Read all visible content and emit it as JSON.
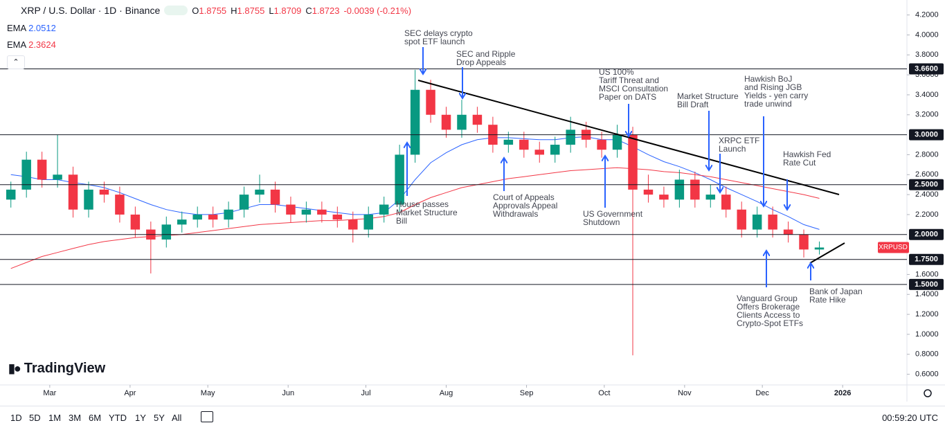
{
  "header": {
    "symbol": "XRP / U.S. Dollar · 1D · Binance",
    "ohlc": [
      {
        "label": "O",
        "value": "1.8755"
      },
      {
        "label": "H",
        "value": "1.8755"
      },
      {
        "label": "L",
        "value": "1.8709"
      },
      {
        "label": "C",
        "value": "1.8723"
      }
    ],
    "change": "-0.0039 (-0.21%)"
  },
  "chart_data": {
    "type": "candlestick",
    "x": [
      45,
      51,
      57,
      63,
      69,
      75,
      81,
      87,
      93,
      99,
      105,
      111,
      117,
      123,
      129,
      135,
      141,
      147,
      153,
      159,
      165,
      171,
      177,
      183,
      189,
      195,
      201,
      207,
      213,
      219,
      225,
      231,
      237,
      243,
      249,
      255,
      261,
      267,
      273,
      279,
      285,
      291,
      297,
      303,
      309,
      315,
      321,
      327,
      333,
      339,
      345,
      351,
      357
    ],
    "open": [
      2.35,
      2.45,
      2.75,
      2.55,
      2.6,
      2.25,
      2.45,
      2.4,
      2.2,
      2.05,
      1.95,
      2.1,
      2.15,
      2.2,
      2.15,
      2.25,
      2.4,
      2.45,
      2.3,
      2.2,
      2.25,
      2.2,
      2.15,
      2.05,
      2.2,
      2.3,
      2.8,
      3.45,
      3.2,
      3.05,
      3.2,
      3.1,
      2.9,
      2.95,
      2.85,
      2.8,
      2.9,
      3.05,
      2.95,
      2.85,
      3.0,
      2.45,
      2.4,
      2.35,
      2.55,
      2.35,
      2.4,
      2.25,
      2.05,
      2.2,
      2.05,
      2.0,
      1.85
    ],
    "high": [
      2.53,
      2.83,
      2.83,
      3.0,
      2.68,
      2.53,
      2.53,
      2.48,
      2.28,
      2.13,
      2.18,
      2.23,
      2.28,
      2.28,
      2.33,
      2.48,
      2.6,
      2.53,
      2.38,
      2.33,
      2.33,
      2.28,
      2.23,
      2.28,
      2.38,
      2.9,
      3.65,
      3.55,
      3.28,
      3.35,
      3.28,
      3.18,
      3.03,
      3.03,
      2.93,
      2.98,
      3.18,
      3.13,
      3.03,
      3.1,
      3.08,
      2.6,
      2.48,
      2.65,
      2.63,
      2.5,
      2.48,
      2.33,
      2.28,
      2.28,
      2.13,
      2.05,
      1.93
    ],
    "low": [
      2.27,
      2.37,
      2.47,
      2.47,
      2.17,
      2.17,
      2.32,
      2.12,
      1.97,
      1.61,
      1.87,
      2.02,
      2.07,
      2.07,
      2.07,
      2.17,
      2.32,
      2.22,
      2.12,
      2.12,
      2.12,
      2.07,
      1.92,
      1.97,
      2.12,
      2.22,
      2.72,
      3.12,
      2.97,
      2.97,
      3.02,
      2.82,
      2.82,
      2.77,
      2.72,
      2.72,
      2.82,
      2.87,
      2.77,
      2.77,
      0.79,
      2.32,
      2.27,
      2.27,
      2.27,
      2.27,
      2.17,
      1.97,
      1.97,
      1.97,
      1.92,
      1.77,
      1.8
    ],
    "close": [
      2.45,
      2.75,
      2.55,
      2.6,
      2.25,
      2.45,
      2.4,
      2.2,
      2.05,
      1.95,
      2.1,
      2.15,
      2.2,
      2.15,
      2.25,
      2.4,
      2.45,
      2.3,
      2.2,
      2.25,
      2.2,
      2.15,
      2.05,
      2.2,
      2.3,
      2.8,
      3.45,
      3.2,
      3.05,
      3.2,
      3.1,
      2.9,
      2.95,
      2.85,
      2.8,
      2.9,
      3.05,
      2.95,
      2.85,
      3.0,
      2.45,
      2.4,
      2.35,
      2.55,
      2.35,
      2.4,
      2.25,
      2.05,
      2.2,
      2.05,
      2.0,
      1.85,
      1.87
    ],
    "up_color": "#089981",
    "down_color": "#f23645",
    "series": [
      {
        "name": "EMA",
        "color": "#2962ff",
        "values": [
          2.6,
          2.58,
          2.55,
          2.55,
          2.52,
          2.5,
          2.47,
          2.42,
          2.36,
          2.3,
          2.25,
          2.22,
          2.2,
          2.2,
          2.22,
          2.26,
          2.3,
          2.3,
          2.28,
          2.26,
          2.24,
          2.22,
          2.2,
          2.2,
          2.22,
          2.35,
          2.55,
          2.72,
          2.82,
          2.9,
          2.95,
          2.97,
          2.97,
          2.96,
          2.95,
          2.95,
          2.97,
          2.98,
          2.95,
          2.95,
          2.88,
          2.8,
          2.73,
          2.68,
          2.62,
          2.55,
          2.47,
          2.4,
          2.33,
          2.25,
          2.18,
          2.1,
          2.0512
        ]
      },
      {
        "name": "EMA",
        "color": "#f23645",
        "values": [
          1.66,
          1.72,
          1.78,
          1.82,
          1.86,
          1.9,
          1.93,
          1.95,
          1.97,
          1.98,
          1.99,
          2.0,
          2.02,
          2.04,
          2.06,
          2.08,
          2.1,
          2.11,
          2.12,
          2.13,
          2.14,
          2.14,
          2.15,
          2.16,
          2.18,
          2.22,
          2.3,
          2.37,
          2.42,
          2.47,
          2.5,
          2.53,
          2.56,
          2.58,
          2.6,
          2.62,
          2.64,
          2.65,
          2.66,
          2.67,
          2.66,
          2.65,
          2.63,
          2.62,
          2.6,
          2.58,
          2.55,
          2.52,
          2.49,
          2.46,
          2.43,
          2.4,
          2.3624
        ]
      }
    ],
    "xlim": [
      40.8,
      390.8
    ],
    "xticks": [
      {
        "value": 60,
        "label": "Mar"
      },
      {
        "value": 91,
        "label": "Apr"
      },
      {
        "value": 121,
        "label": "May"
      },
      {
        "value": 152,
        "label": "Jun"
      },
      {
        "value": 182,
        "label": "Jul"
      },
      {
        "value": 213,
        "label": "Aug"
      },
      {
        "value": 244,
        "label": "Sep"
      },
      {
        "value": 274,
        "label": "Oct"
      },
      {
        "value": 305,
        "label": "Nov"
      },
      {
        "value": 335,
        "label": "Dec"
      },
      {
        "value": 366,
        "label": "2026"
      }
    ],
    "ylim": [
      0.5,
      4.35
    ],
    "yticks": [
      {
        "value": 4.2,
        "label": "4.2000"
      },
      {
        "value": 4.0,
        "label": "4.0000"
      },
      {
        "value": 3.8,
        "label": "3.8000"
      },
      {
        "value": 3.6,
        "label": "3.6000"
      },
      {
        "value": 3.4,
        "label": "3.4000"
      },
      {
        "value": 3.2,
        "label": "3.2000"
      },
      {
        "value": 2.8,
        "label": "2.8000"
      },
      {
        "value": 2.6,
        "label": "2.6000"
      },
      {
        "value": 2.4,
        "label": "2.4000"
      },
      {
        "value": 2.2,
        "label": "2.2000"
      },
      {
        "value": 1.6,
        "label": "1.6000"
      },
      {
        "value": 1.4,
        "label": "1.4000"
      },
      {
        "value": 1.2,
        "label": "1.2000"
      },
      {
        "value": 1.0,
        "label": "1.0000"
      },
      {
        "value": 0.8,
        "label": "0.8000"
      },
      {
        "value": 0.6,
        "label": "0.6000"
      }
    ],
    "levels": [
      {
        "value": 3.66,
        "label": "3.6600"
      },
      {
        "value": 3.0,
        "label": "3.0000"
      },
      {
        "value": 2.5,
        "label": "2.5000"
      },
      {
        "value": 2.0,
        "label": "2.0000"
      },
      {
        "value": 1.75,
        "label": "1.7500"
      },
      {
        "value": 1.5,
        "label": "1.5000"
      }
    ],
    "price_label": "XRPUSD",
    "annotations": [
      {
        "lines": [
          "SEC delays crypto",
          "spot ETF launch"
        ]
      },
      {
        "lines": [
          "SEC and Ripple",
          "Drop Appeals"
        ]
      },
      {
        "lines": [
          "US 100%",
          "Tariff Threat and",
          "MSCI Consultation",
          "Paper on DATS"
        ]
      },
      {
        "lines": [
          "Market Structure",
          "Bill Draft"
        ]
      },
      {
        "lines": [
          "XRPC ETF",
          "Launch"
        ]
      },
      {
        "lines": [
          "Hawkish BoJ",
          "and Rising JGB",
          "Yields - yen carry",
          "trade unwind"
        ]
      },
      {
        "lines": [
          "Hawkish Fed",
          "Rate Cut"
        ]
      },
      {
        "lines": [
          "House passes",
          "Market Structure",
          "Bill"
        ]
      },
      {
        "lines": [
          "Court of Appeals",
          "Approvals Appeal",
          "Withdrawals"
        ]
      },
      {
        "lines": [
          "US Government",
          "Shutdown"
        ]
      },
      {
        "lines": [
          "Vanguard Group",
          "Offers Brokerage",
          "Clients Access to",
          "Crypto-Spot ETFs"
        ]
      },
      {
        "lines": [
          "Bank of Japan",
          "Rate Hike"
        ]
      }
    ]
  },
  "logo": "TradingView",
  "toolbar": {
    "ranges": [
      "1D",
      "5D",
      "1M",
      "3M",
      "6M",
      "YTD",
      "1Y",
      "5Y",
      "All"
    ],
    "clock": "00:59:20 UTC"
  }
}
